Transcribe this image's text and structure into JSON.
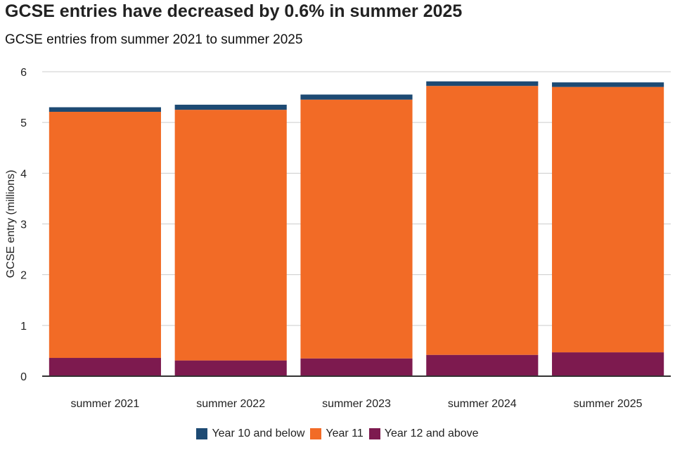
{
  "title": "GCSE entries have decreased by 0.6% in summer 2025",
  "subtitle": "GCSE entries from summer 2021 to summer 2025",
  "colors": {
    "year10": "#1d4a73",
    "year11": "#f26b26",
    "year12": "#7d1a4f",
    "grid": "#cccccc",
    "axis": "#333333"
  },
  "chart_data": {
    "type": "bar",
    "stacked": true,
    "title": "GCSE entries have decreased by 0.6% in summer 2025",
    "subtitle": "GCSE entries from summer 2021 to summer 2025",
    "xlabel": "",
    "ylabel": "GCSE entry (millions)",
    "ylim": [
      0,
      6
    ],
    "yticks": [
      "0",
      "1",
      "2",
      "3",
      "4",
      "5",
      "6"
    ],
    "grid": true,
    "legend_position": "bottom-center",
    "categories": [
      "summer 2021",
      "summer 2022",
      "summer 2023",
      "summer 2024",
      "summer 2025"
    ],
    "series": [
      {
        "name": "Year 12 and above",
        "color": "#7d1a4f",
        "values": [
          0.36,
          0.31,
          0.35,
          0.42,
          0.47
        ]
      },
      {
        "name": "Year 11",
        "color": "#f26b26",
        "values": [
          4.85,
          4.94,
          5.1,
          5.3,
          5.23
        ]
      },
      {
        "name": "Year 10 and below",
        "color": "#1d4a73",
        "values": [
          0.09,
          0.1,
          0.1,
          0.09,
          0.09
        ]
      }
    ]
  },
  "legend": {
    "items": [
      {
        "label": "Year 10 and below",
        "color": "#1d4a73"
      },
      {
        "label": "Year 11",
        "color": "#f26b26"
      },
      {
        "label": "Year 12 and above",
        "color": "#7d1a4f"
      }
    ]
  }
}
